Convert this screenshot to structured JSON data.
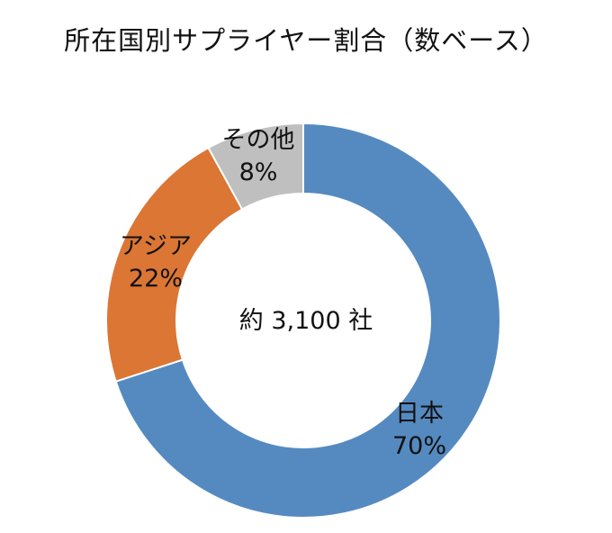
{
  "chart_data": {
    "type": "pie",
    "title": "所在国別サプライヤー割合（数ベース）",
    "center_text": "約 3,100 社",
    "slices": [
      {
        "label": "日本",
        "value": 70,
        "value_label": "70%",
        "color": "#558ac0"
      },
      {
        "label": "アジア",
        "value": 22,
        "value_label": "22%",
        "color": "#db7634"
      },
      {
        "label": "その他",
        "value": 8,
        "value_label": "8%",
        "color": "#bfbfbf"
      }
    ]
  }
}
